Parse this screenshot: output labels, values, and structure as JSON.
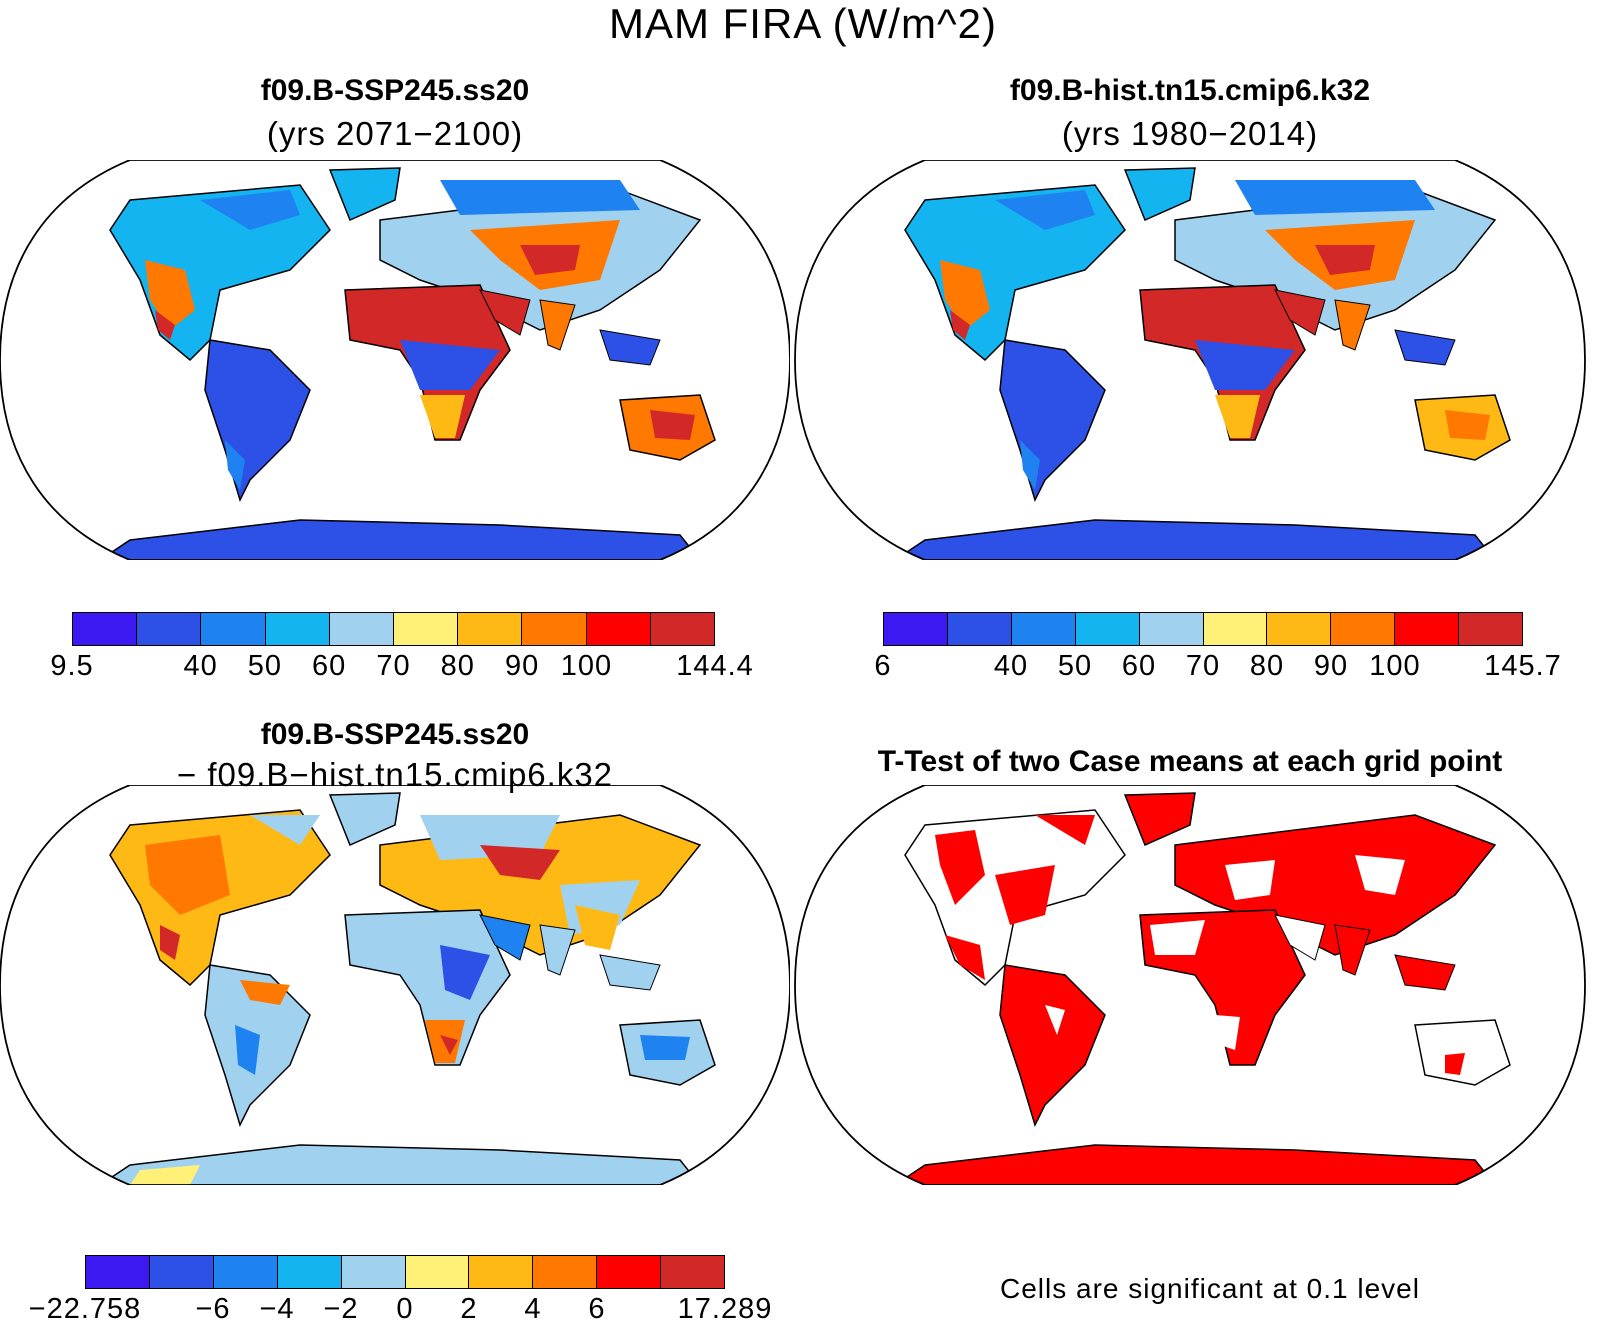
{
  "title": "MAM FIRA (W/m^2)",
  "panels": [
    {
      "title": "f09.B-SSP245.ss20",
      "subtitle": "(yrs 2071−2100)"
    },
    {
      "title": "f09.B-hist.tn15.cmip6.k32",
      "subtitle": "(yrs 1980−2014)"
    },
    {
      "title": "f09.B-SSP245.ss20",
      "subtitle": "− f09.B−hist.tn15.cmip6.k32"
    },
    {
      "title": "T-Test of two Case means at each grid point",
      "subtitle": ""
    }
  ],
  "colorbars": [
    {
      "labels": [
        "9.5",
        "",
        "40",
        "50",
        "60",
        "70",
        "80",
        "90",
        "100",
        "",
        "144.4"
      ]
    },
    {
      "labels": [
        "6",
        "",
        "40",
        "50",
        "60",
        "70",
        "80",
        "90",
        "100",
        "",
        "145.7"
      ]
    },
    {
      "labels": [
        "−22.758",
        "",
        "−6",
        "−4",
        "−2",
        "0",
        "2",
        "4",
        "6",
        "",
        "17.289"
      ]
    }
  ],
  "palette": [
    "#3c19f0",
    "#2d50e6",
    "#1e82f0",
    "#14b4f0",
    "#a0d2f0",
    "#fff078",
    "#ffb914",
    "#ff7800",
    "#ff0000",
    "#d22828"
  ],
  "significance_color": "#ff0000",
  "note": "Cells are significant at 0.1 level"
}
